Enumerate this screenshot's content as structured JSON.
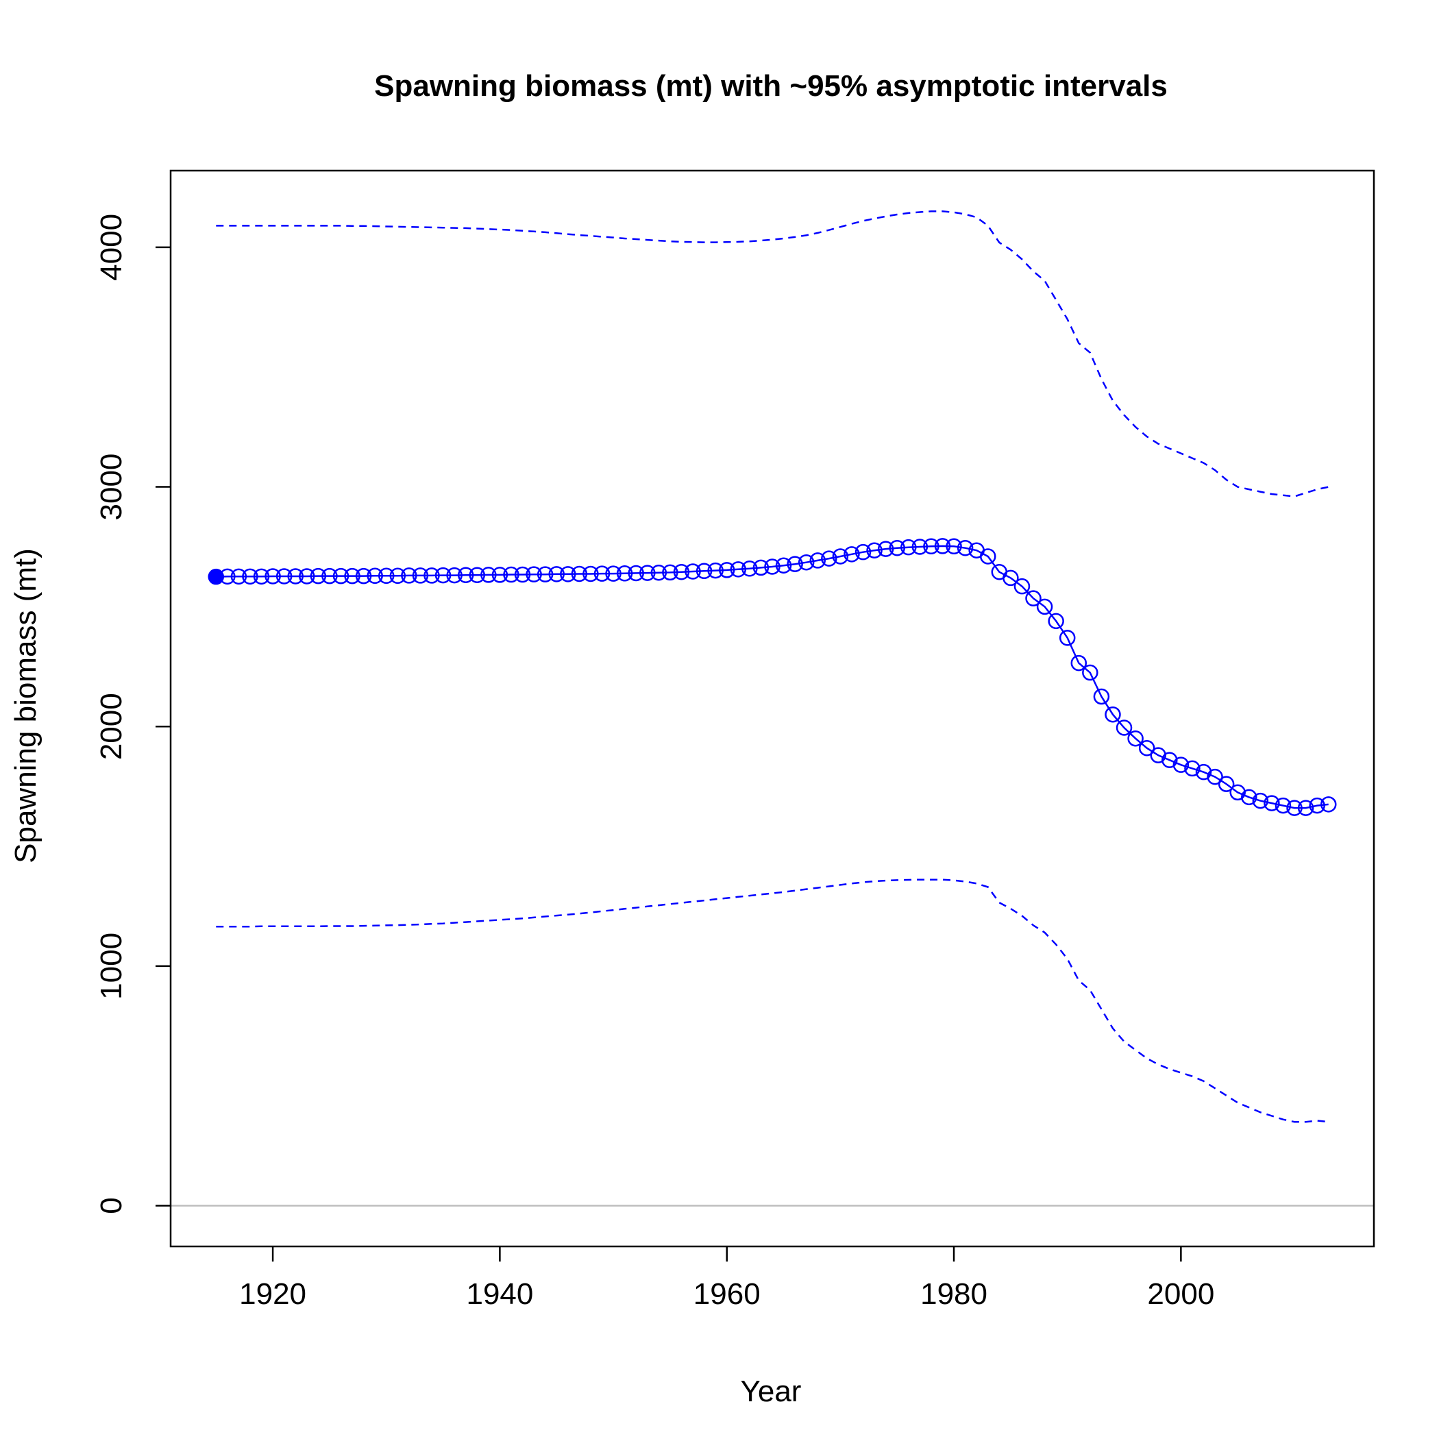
{
  "chart_data": {
    "type": "line",
    "title": "Spawning biomass (mt) with ~95% asymptotic intervals",
    "xlabel": "Year",
    "ylabel": "Spawning biomass (mt)",
    "xlim": [
      1911,
      2017
    ],
    "ylim": [
      -170,
      4320
    ],
    "xticks": [
      1920,
      1940,
      1960,
      1980,
      2000
    ],
    "yticks": [
      0,
      1000,
      2000,
      3000,
      4000
    ],
    "hline": 0,
    "colors": {
      "series": "#0000ff",
      "reference": "#bebebe",
      "axis": "#000000"
    },
    "years": [
      1915,
      1916,
      1917,
      1918,
      1919,
      1920,
      1921,
      1922,
      1923,
      1924,
      1925,
      1926,
      1927,
      1928,
      1929,
      1930,
      1931,
      1932,
      1933,
      1934,
      1935,
      1936,
      1937,
      1938,
      1939,
      1940,
      1941,
      1942,
      1943,
      1944,
      1945,
      1946,
      1947,
      1948,
      1949,
      1950,
      1951,
      1952,
      1953,
      1954,
      1955,
      1956,
      1957,
      1958,
      1959,
      1960,
      1961,
      1962,
      1963,
      1964,
      1965,
      1966,
      1967,
      1968,
      1969,
      1970,
      1971,
      1972,
      1973,
      1974,
      1975,
      1976,
      1977,
      1978,
      1979,
      1980,
      1981,
      1982,
      1983,
      1984,
      1985,
      1986,
      1987,
      1988,
      1989,
      1990,
      1991,
      1992,
      1993,
      1994,
      1995,
      1996,
      1997,
      1998,
      1999,
      2000,
      2001,
      2002,
      2003,
      2004,
      2005,
      2006,
      2007,
      2008,
      2009,
      2010,
      2011,
      2012,
      2013
    ],
    "series": [
      {
        "role": "estimate",
        "style": "solid-with-circles",
        "values": [
          2625,
          2626,
          2626,
          2626,
          2626,
          2627,
          2627,
          2627,
          2627,
          2628,
          2628,
          2628,
          2628,
          2628,
          2629,
          2629,
          2629,
          2630,
          2630,
          2630,
          2631,
          2631,
          2632,
          2632,
          2633,
          2633,
          2634,
          2634,
          2635,
          2635,
          2636,
          2636,
          2637,
          2637,
          2638,
          2638,
          2639,
          2640,
          2641,
          2642,
          2643,
          2645,
          2647,
          2649,
          2651,
          2653,
          2656,
          2659,
          2663,
          2667,
          2672,
          2678,
          2685,
          2693,
          2701,
          2710,
          2719,
          2728,
          2735,
          2741,
          2745,
          2748,
          2750,
          2752,
          2753,
          2752,
          2745,
          2735,
          2710,
          2645,
          2620,
          2585,
          2535,
          2500,
          2440,
          2370,
          2265,
          2225,
          2125,
          2050,
          1995,
          1950,
          1910,
          1880,
          1860,
          1840,
          1825,
          1810,
          1790,
          1760,
          1725,
          1705,
          1690,
          1680,
          1670,
          1660,
          1660,
          1670,
          1675
        ]
      },
      {
        "role": "upper-95",
        "style": "dashed",
        "values": [
          4090,
          4090,
          4090,
          4090,
          4090,
          4090,
          4090,
          4090,
          4090,
          4090,
          4090,
          4090,
          4089,
          4089,
          4088,
          4087,
          4086,
          4085,
          4084,
          4083,
          4082,
          4081,
          4080,
          4078,
          4076,
          4074,
          4072,
          4069,
          4066,
          4063,
          4059,
          4055,
          4051,
          4048,
          4044,
          4041,
          4037,
          4034,
          4031,
          4028,
          4025,
          4023,
          4022,
          4021,
          4021,
          4022,
          4023,
          4025,
          4028,
          4032,
          4037,
          4043,
          4050,
          4060,
          4072,
          4085,
          4098,
          4110,
          4120,
          4129,
          4137,
          4143,
          4147,
          4150,
          4150,
          4146,
          4138,
          4125,
          4090,
          4020,
          3990,
          3950,
          3900,
          3860,
          3780,
          3700,
          3600,
          3560,
          3450,
          3360,
          3300,
          3250,
          3210,
          3180,
          3160,
          3140,
          3120,
          3100,
          3070,
          3030,
          3000,
          2990,
          2980,
          2970,
          2965,
          2960,
          2975,
          2990,
          3000
        ]
      },
      {
        "role": "lower-95",
        "style": "dashed",
        "values": [
          1165,
          1165,
          1165,
          1165,
          1166,
          1166,
          1166,
          1166,
          1166,
          1166,
          1167,
          1167,
          1167,
          1168,
          1169,
          1170,
          1171,
          1172,
          1174,
          1176,
          1178,
          1181,
          1184,
          1187,
          1190,
          1193,
          1196,
          1199,
          1203,
          1207,
          1211,
          1215,
          1219,
          1224,
          1229,
          1234,
          1239,
          1244,
          1249,
          1254,
          1259,
          1264,
          1269,
          1274,
          1279,
          1284,
          1289,
          1294,
          1299,
          1304,
          1309,
          1315,
          1321,
          1327,
          1333,
          1339,
          1345,
          1350,
          1354,
          1357,
          1359,
          1360,
          1361,
          1361,
          1361,
          1358,
          1353,
          1345,
          1330,
          1265,
          1240,
          1210,
          1170,
          1140,
          1090,
          1030,
          940,
          900,
          820,
          740,
          685,
          650,
          615,
          590,
          570,
          555,
          540,
          520,
          490,
          460,
          430,
          410,
          390,
          375,
          360,
          350,
          350,
          355,
          350
        ]
      }
    ]
  }
}
